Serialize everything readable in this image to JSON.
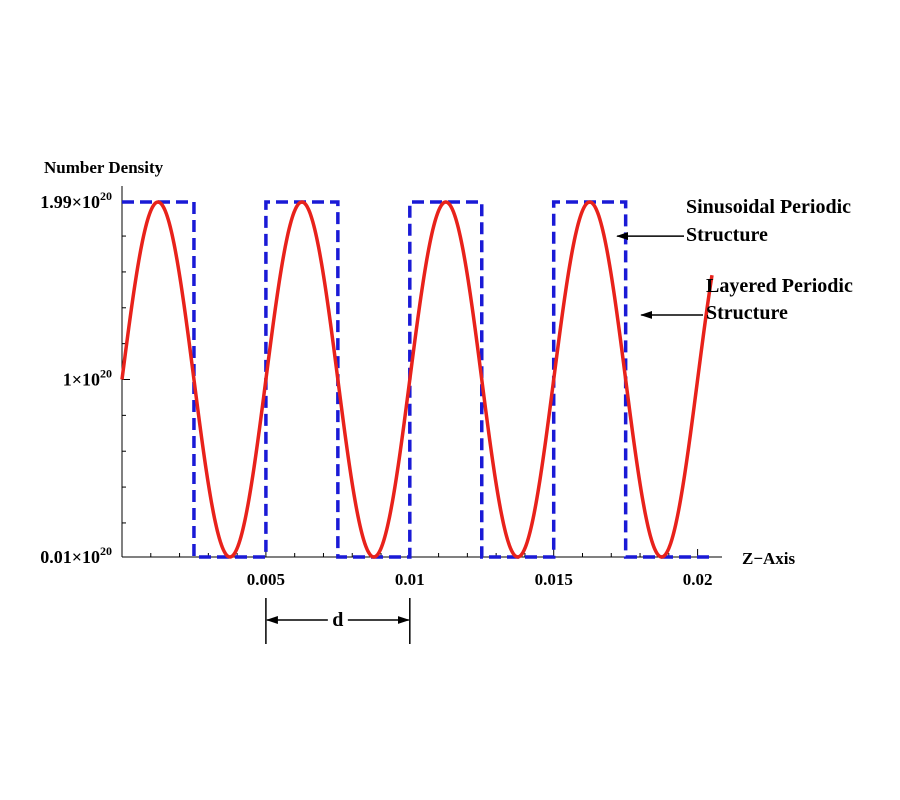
{
  "chart_data": {
    "type": "line",
    "ylabel": "Number Density",
    "xlabel": "Z−Axis",
    "xlim": [
      0,
      0.0205
    ],
    "ylim": [
      0.01,
      1.99
    ],
    "y_unit_exponent": 20,
    "x_ticks": [
      "0.005",
      "0.01",
      "0.015",
      "0.02"
    ],
    "x_tick_values": [
      0.005,
      0.01,
      0.015,
      0.02
    ],
    "y_ticks": [
      {
        "value": 1.99,
        "mantissa": "1.99×10",
        "exp": "20"
      },
      {
        "value": 1.0,
        "mantissa": "1×10",
        "exp": "20"
      },
      {
        "value": 0.01,
        "mantissa": "0.01×10",
        "exp": "20"
      }
    ],
    "series": [
      {
        "name": "Sinusoidal Periodic Structure",
        "style": "solid",
        "color": "#e8221b",
        "formula": "y = 1 + 0.99*sin(2*pi*x/d)",
        "period": 0.005,
        "x_range": [
          0,
          0.0205
        ],
        "mean": 1.0,
        "amplitude": 0.99
      },
      {
        "name": "Layered Periodic Structure",
        "style": "dashed",
        "color": "#1a1ad6",
        "segments": [
          {
            "x0": 0.0,
            "x1": 0.0025,
            "y": 1.99
          },
          {
            "x0": 0.0025,
            "x1": 0.005,
            "y": 0.01
          },
          {
            "x0": 0.005,
            "x1": 0.0075,
            "y": 1.99
          },
          {
            "x0": 0.0075,
            "x1": 0.01,
            "y": 0.01
          },
          {
            "x0": 0.01,
            "x1": 0.0125,
            "y": 1.99
          },
          {
            "x0": 0.0125,
            "x1": 0.015,
            "y": 0.01
          },
          {
            "x0": 0.015,
            "x1": 0.0175,
            "y": 1.99
          },
          {
            "x0": 0.0175,
            "x1": 0.0205,
            "y": 0.01
          }
        ]
      }
    ],
    "annotations": {
      "sinusoidal_label": [
        "Sinusoidal Periodic",
        "Structure"
      ],
      "sinusoidal_arrow_x": 0.0171,
      "sinusoidal_arrow_y": 1.8,
      "layered_label": [
        "Layered Periodic",
        "Structure"
      ],
      "layered_arrow_x": 0.0179,
      "layered_arrow_y": 1.36,
      "period_label": "d",
      "period_x0": 0.005,
      "period_x1": 0.01
    },
    "grid": false
  }
}
